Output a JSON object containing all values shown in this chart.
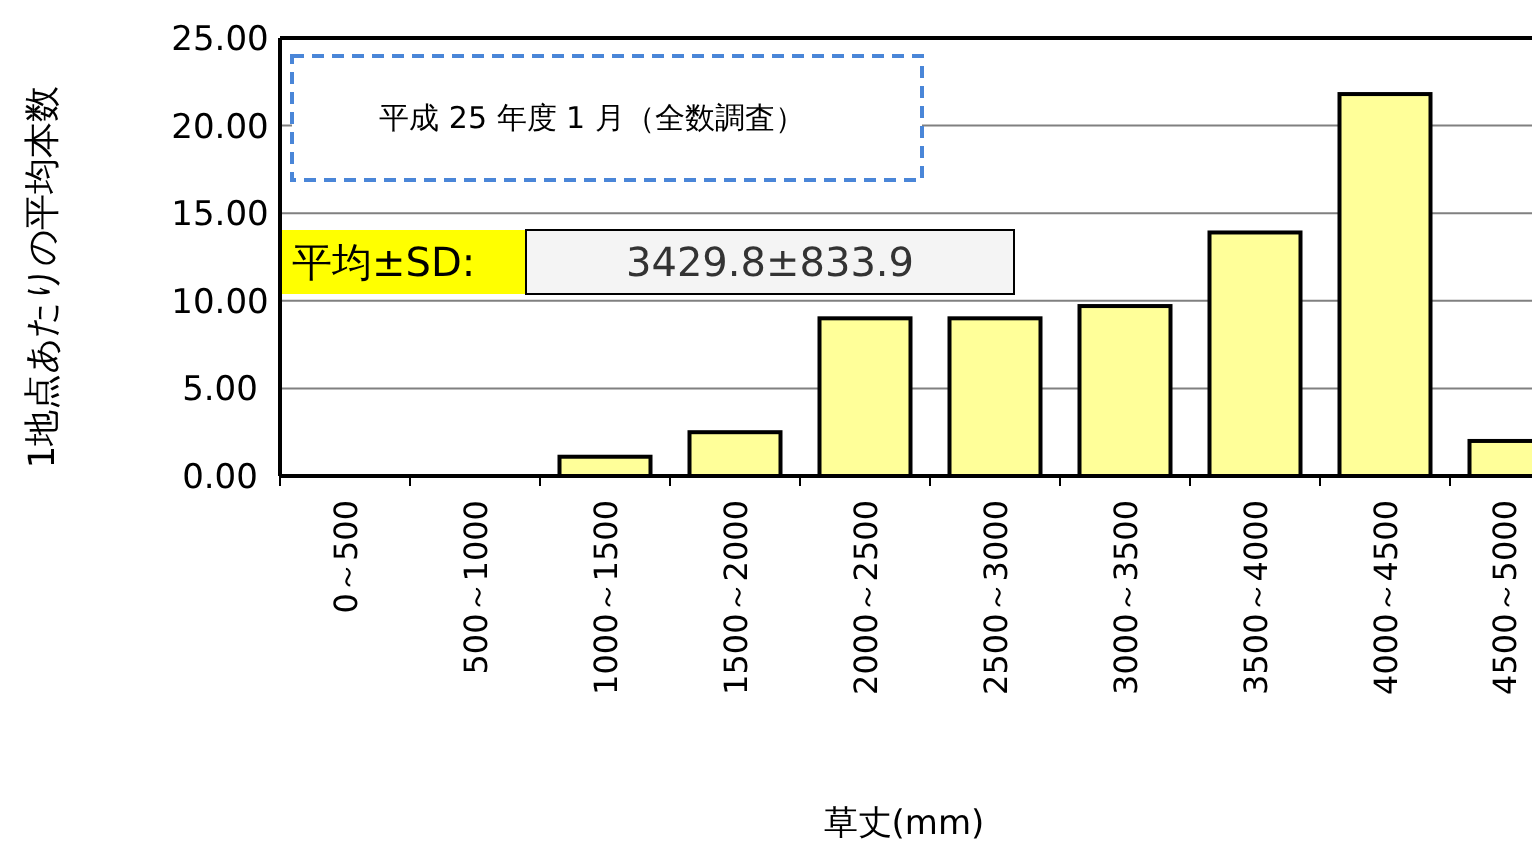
{
  "chart_data": {
    "type": "bar",
    "xlabel": "草丈(mm)",
    "ylabel": "1地点あたりの平均本数",
    "categories": [
      "0～500",
      "500～1000",
      "1000～1500",
      "1500～2000",
      "2000～2500",
      "2500～3000",
      "3000～3500",
      "3500～4000",
      "4000～4500",
      "4500～5000"
    ],
    "values": [
      0,
      0,
      1.1,
      2.5,
      9.0,
      9.0,
      9.7,
      13.9,
      21.8,
      2.0
    ],
    "color": "#ffff99",
    "ylim": [
      0,
      25
    ],
    "yticks": [
      {
        "value": 0,
        "label": "0.00"
      },
      {
        "value": 5,
        "label": "5.00"
      },
      {
        "value": 10,
        "label": "10.00"
      },
      {
        "value": 15,
        "label": "15.00"
      },
      {
        "value": 20,
        "label": "20.00"
      },
      {
        "value": 25,
        "label": "25.00"
      }
    ],
    "grid": "y",
    "annotations": [
      "平成 25 年度 1 月（全数調査）",
      "平均±SD:",
      "3429.8±833.9"
    ]
  }
}
